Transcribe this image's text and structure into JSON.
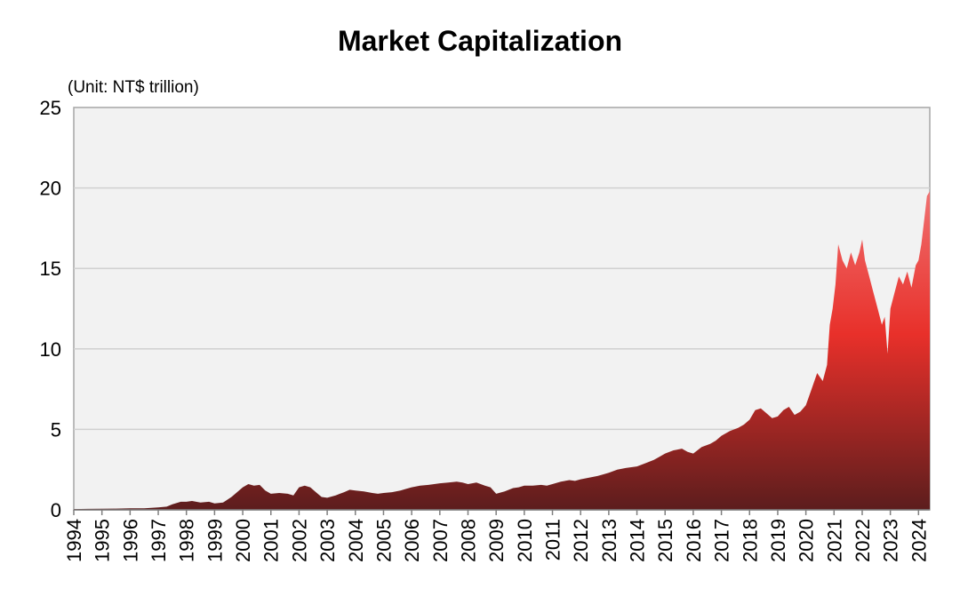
{
  "chart_data": {
    "type": "area",
    "title": "Market Capitalization",
    "unit_label": "(Unit: NT$  trillion)",
    "ylim": [
      0,
      25
    ],
    "yticks": [
      0,
      5,
      10,
      15,
      20,
      25
    ],
    "xlim": [
      1994,
      2024.4
    ],
    "xticks": [
      "1994",
      "1995",
      "1996",
      "1997",
      "1998",
      "1999",
      "2000",
      "2001",
      "2002",
      "2003",
      "2004",
      "2005",
      "2006",
      "2007",
      "2008",
      "2009",
      "2010",
      "2011",
      "2012",
      "2013",
      "2014",
      "2015",
      "2016",
      "2017",
      "2018",
      "2019",
      "2020",
      "2021",
      "2022",
      "2023",
      "2024"
    ],
    "grid": true,
    "gradient_colors": [
      "#5c1d1d",
      "#e8302a",
      "#f07070"
    ],
    "x": [
      1994.0,
      1994.5,
      1995.0,
      1995.5,
      1996.0,
      1996.5,
      1997.0,
      1997.3,
      1997.5,
      1997.8,
      1998.0,
      1998.2,
      1998.5,
      1998.8,
      1999.0,
      1999.3,
      1999.6,
      1999.8,
      2000.0,
      2000.2,
      2000.4,
      2000.6,
      2000.8,
      2001.0,
      2001.3,
      2001.6,
      2001.8,
      2002.0,
      2002.2,
      2002.4,
      2002.6,
      2002.8,
      2003.0,
      2003.3,
      2003.6,
      2003.8,
      2004.0,
      2004.3,
      2004.6,
      2004.8,
      2005.0,
      2005.3,
      2005.6,
      2005.8,
      2006.0,
      2006.3,
      2006.6,
      2006.8,
      2007.0,
      2007.3,
      2007.6,
      2007.8,
      2008.0,
      2008.3,
      2008.6,
      2008.8,
      2009.0,
      2009.3,
      2009.6,
      2009.8,
      2010.0,
      2010.3,
      2010.6,
      2010.8,
      2011.0,
      2011.3,
      2011.6,
      2011.8,
      2012.0,
      2012.3,
      2012.6,
      2012.8,
      2013.0,
      2013.3,
      2013.6,
      2013.8,
      2014.0,
      2014.3,
      2014.6,
      2014.8,
      2015.0,
      2015.3,
      2015.6,
      2015.8,
      2016.0,
      2016.3,
      2016.6,
      2016.8,
      2017.0,
      2017.3,
      2017.6,
      2017.8,
      2018.0,
      2018.2,
      2018.4,
      2018.6,
      2018.8,
      2019.0,
      2019.2,
      2019.4,
      2019.6,
      2019.8,
      2020.0,
      2020.2,
      2020.4,
      2020.6,
      2020.75,
      2020.85,
      2020.95,
      2021.05,
      2021.15,
      2021.3,
      2021.45,
      2021.6,
      2021.75,
      2021.9,
      2022.0,
      2022.1,
      2022.25,
      2022.4,
      2022.55,
      2022.7,
      2022.8,
      2022.9,
      2023.0,
      2023.15,
      2023.3,
      2023.45,
      2023.6,
      2023.75,
      2023.9,
      2024.0,
      2024.1,
      2024.2,
      2024.3,
      2024.4
    ],
    "y": [
      0.05,
      0.06,
      0.07,
      0.08,
      0.1,
      0.1,
      0.15,
      0.2,
      0.35,
      0.5,
      0.5,
      0.55,
      0.45,
      0.5,
      0.4,
      0.45,
      0.8,
      1.1,
      1.4,
      1.6,
      1.5,
      1.55,
      1.2,
      1.0,
      1.05,
      1.0,
      0.9,
      1.4,
      1.5,
      1.4,
      1.1,
      0.8,
      0.75,
      0.9,
      1.1,
      1.25,
      1.2,
      1.15,
      1.05,
      1.0,
      1.05,
      1.1,
      1.2,
      1.3,
      1.4,
      1.5,
      1.55,
      1.6,
      1.65,
      1.7,
      1.75,
      1.7,
      1.6,
      1.7,
      1.5,
      1.4,
      1.0,
      1.15,
      1.35,
      1.4,
      1.5,
      1.5,
      1.55,
      1.5,
      1.6,
      1.75,
      1.85,
      1.8,
      1.9,
      2.0,
      2.1,
      2.2,
      2.3,
      2.5,
      2.6,
      2.65,
      2.7,
      2.9,
      3.1,
      3.3,
      3.5,
      3.7,
      3.8,
      3.6,
      3.5,
      3.9,
      4.1,
      4.3,
      4.6,
      4.9,
      5.1,
      5.3,
      5.6,
      6.2,
      6.3,
      6.0,
      5.7,
      5.8,
      6.2,
      6.4,
      5.9,
      6.1,
      6.5,
      7.5,
      8.5,
      8.0,
      9.0,
      11.5,
      12.5,
      14.0,
      16.5,
      15.5,
      15.0,
      16.0,
      15.2,
      16.0,
      16.8,
      15.5,
      14.5,
      13.5,
      12.5,
      11.5,
      12.0,
      9.7,
      12.5,
      13.5,
      14.5,
      14.0,
      14.8,
      13.8,
      15.2,
      15.5,
      16.5,
      18.0,
      19.5,
      19.8
    ]
  }
}
